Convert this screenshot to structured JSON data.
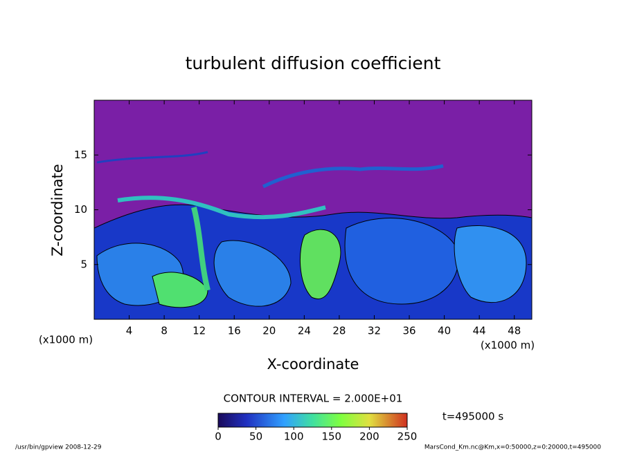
{
  "chart_data": {
    "type": "contour",
    "title": "turbulent diffusion coefficient",
    "x_label": "X-coordinate",
    "y_label": "Z-coordinate",
    "x_unit": "(x1000 m)",
    "y_unit": "(x1000 m)",
    "xlim": [
      0,
      50
    ],
    "xticks": [
      4,
      8,
      12,
      16,
      20,
      24,
      28,
      32,
      36,
      40,
      44,
      48
    ],
    "ylim": [
      0,
      20
    ],
    "yticks": [
      5,
      10,
      15
    ],
    "contour_interval": "CONTOUR INTERVAL = 2.000E+01",
    "time": "t=495000 s",
    "colorbar": {
      "lim": [
        0,
        250
      ],
      "ticks": [
        0,
        50,
        100,
        150,
        200,
        250
      ]
    },
    "footer_left": "/usr/bin/gpview  2008-12-29",
    "footer_right": "MarsCond_Km.nc@Km,x=0:50000,z=0:20000,t=495000"
  }
}
